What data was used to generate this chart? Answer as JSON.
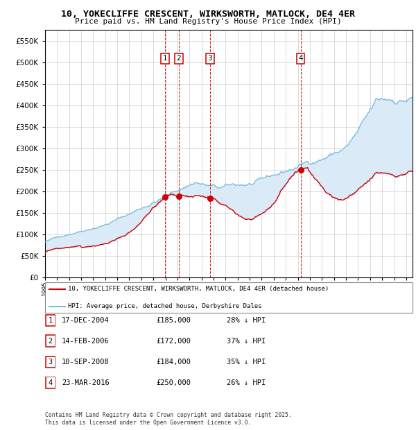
{
  "title": "10, YOKECLIFFE CRESCENT, WIRKSWORTH, MATLOCK, DE4 4ER",
  "subtitle": "Price paid vs. HM Land Registry's House Price Index (HPI)",
  "ylim": [
    0,
    575000
  ],
  "yticks": [
    0,
    50000,
    100000,
    150000,
    200000,
    250000,
    300000,
    350000,
    400000,
    450000,
    500000,
    550000
  ],
  "xlim_start": 1995.0,
  "xlim_end": 2025.5,
  "hpi_color": "#7bbce0",
  "price_color": "#cc0000",
  "vline_color": "#cc0000",
  "bg_color": "#ffffff",
  "grid_color": "#cccccc",
  "hpi_area_color": "#daeaf7",
  "legend_label_price": "10, YOKECLIFFE CRESCENT, WIRKSWORTH, MATLOCK, DE4 4ER (detached house)",
  "legend_label_hpi": "HPI: Average price, detached house, Derbyshire Dales",
  "transactions": [
    {
      "num": 1,
      "date_decimal": 2004.96,
      "price": 185000
    },
    {
      "num": 2,
      "date_decimal": 2006.12,
      "price": 172000
    },
    {
      "num": 3,
      "date_decimal": 2008.7,
      "price": 184000
    },
    {
      "num": 4,
      "date_decimal": 2016.23,
      "price": 250000
    }
  ],
  "table_rows": [
    {
      "num": 1,
      "date": "17-DEC-2004",
      "price": "£185,000",
      "pct": "28% ↓ HPI"
    },
    {
      "num": 2,
      "date": "14-FEB-2006",
      "price": "£172,000",
      "pct": "37% ↓ HPI"
    },
    {
      "num": 3,
      "date": "10-SEP-2008",
      "price": "£184,000",
      "pct": "35% ↓ HPI"
    },
    {
      "num": 4,
      "date": "23-MAR-2016",
      "price": "£250,000",
      "pct": "26% ↓ HPI"
    }
  ],
  "footnote": "Contains HM Land Registry data © Crown copyright and database right 2025.\nThis data is licensed under the Open Government Licence v3.0."
}
